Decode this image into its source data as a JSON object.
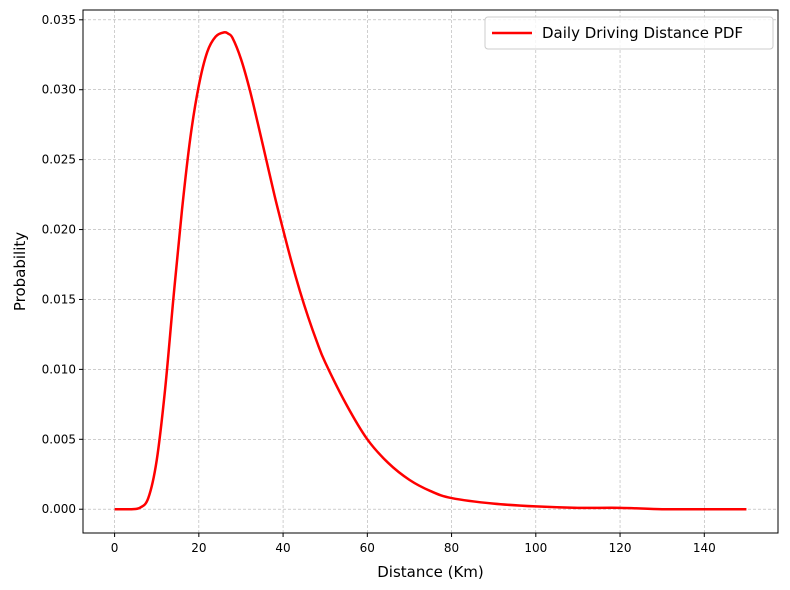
{
  "chart_data": {
    "type": "line",
    "xlabel": "Distance (Km)",
    "ylabel": "Probability",
    "xlim": [
      -7.5,
      157.5
    ],
    "ylim": [
      -0.0017,
      0.0357
    ],
    "x_ticks": [
      0,
      20,
      40,
      60,
      80,
      100,
      120,
      140
    ],
    "y_ticks": [
      0.0,
      0.005,
      0.01,
      0.015,
      0.02,
      0.025,
      0.03,
      0.035
    ],
    "x_tick_labels": [
      "0",
      "20",
      "40",
      "60",
      "80",
      "100",
      "120",
      "140"
    ],
    "y_tick_labels": [
      "0.000",
      "0.005",
      "0.010",
      "0.015",
      "0.020",
      "0.025",
      "0.030",
      "0.035"
    ],
    "grid": true,
    "legend_position": "top-right",
    "series": [
      {
        "name": "Daily Driving Distance PDF",
        "color": "#ff0000",
        "x": [
          0,
          2,
          4,
          6,
          8,
          10,
          12,
          14,
          16,
          18,
          20,
          22,
          24,
          26,
          27,
          28,
          30,
          32,
          34,
          36,
          38,
          40,
          42,
          44,
          46,
          48,
          50,
          55,
          60,
          65,
          70,
          75,
          80,
          90,
          100,
          110,
          120,
          130,
          140,
          150
        ],
        "y": [
          0.0,
          0.0,
          0.0,
          0.0001,
          0.0008,
          0.0035,
          0.0086,
          0.0152,
          0.0214,
          0.0266,
          0.0303,
          0.0327,
          0.0338,
          0.0341,
          0.034,
          0.0337,
          0.0322,
          0.0301,
          0.0276,
          0.025,
          0.0224,
          0.02,
          0.0177,
          0.0156,
          0.0137,
          0.012,
          0.0105,
          0.0075,
          0.005,
          0.0033,
          0.0021,
          0.0013,
          0.0008,
          0.0004,
          0.0002,
          0.0001,
          0.0001,
          0.0,
          0.0,
          0.0
        ]
      }
    ]
  }
}
